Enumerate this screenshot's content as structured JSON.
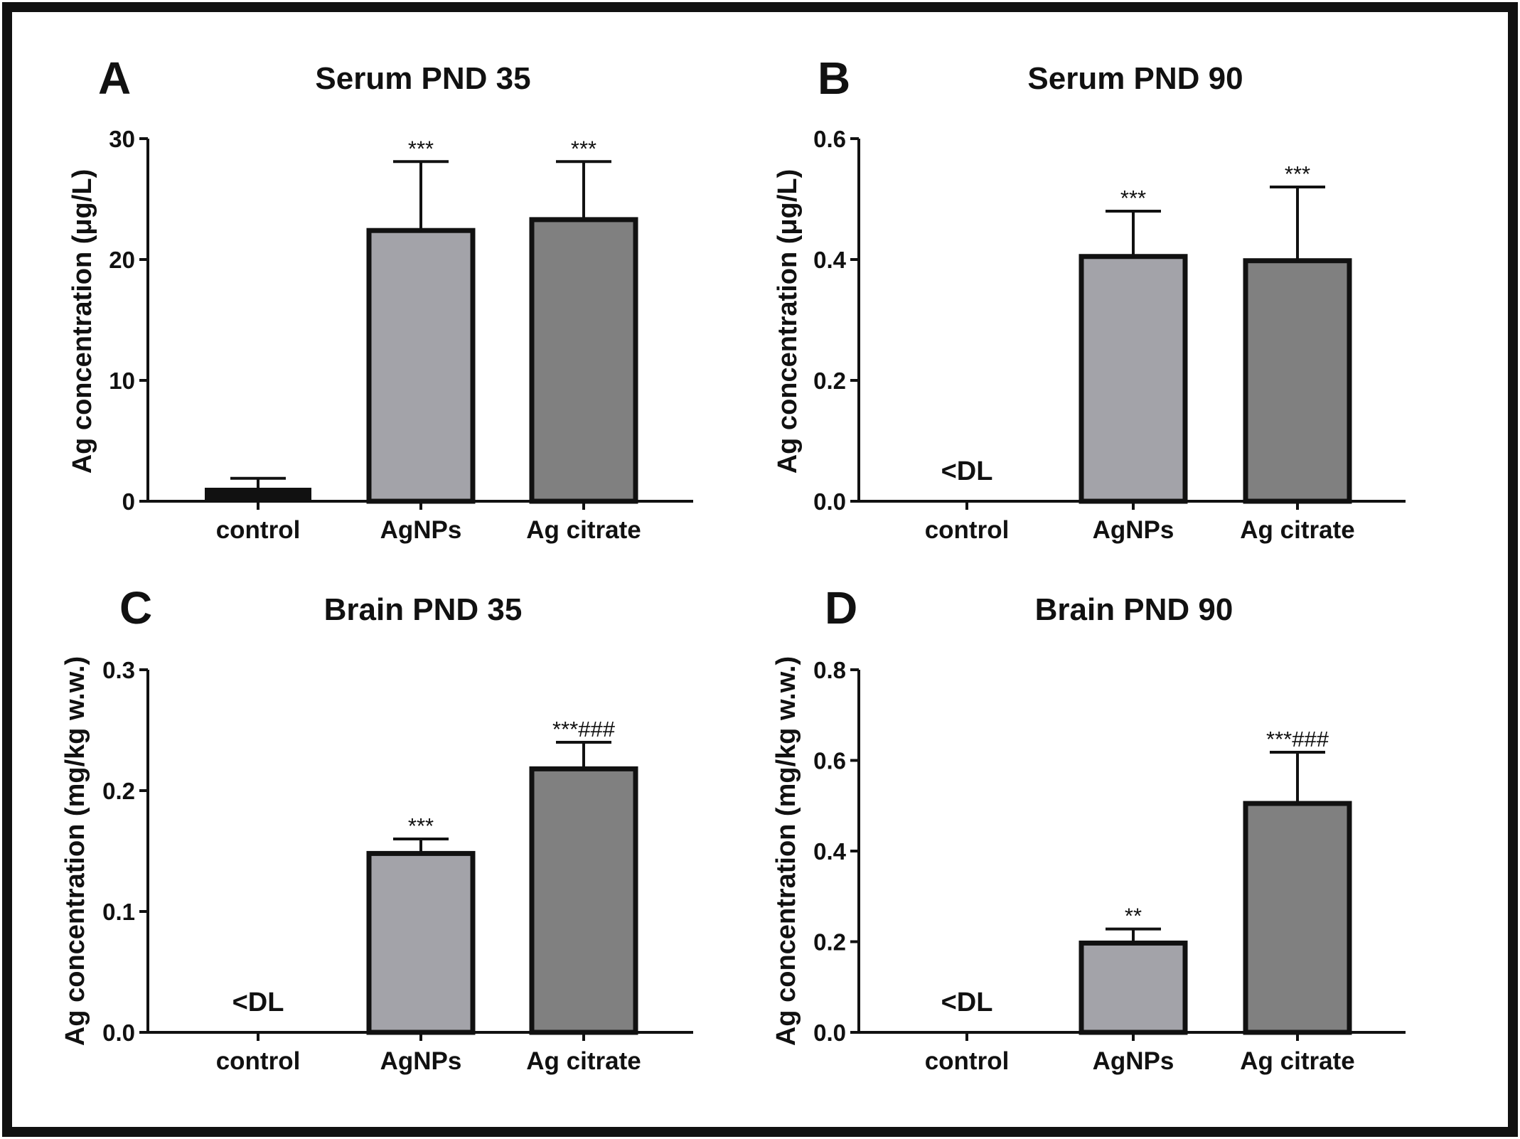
{
  "colors": {
    "control": "#111111",
    "AgNPs": "#a3a3a9",
    "Ag citrate": "#808080",
    "frame": "#111111",
    "axis": "#111111"
  },
  "chart_data": [
    {
      "letter": "A",
      "type": "bar",
      "title": "Serum PND 35",
      "ylabel": "Ag concentration (μg/L)",
      "xlabel": "",
      "ylim": [
        0,
        30
      ],
      "yticks": [
        "0",
        "10",
        "20",
        "30"
      ],
      "categories": [
        "control",
        "AgNPs",
        "Ag citrate"
      ],
      "values": [
        1,
        22.4,
        23.3
      ],
      "errors": [
        0.9,
        5.7,
        4.8
      ],
      "annotations": [
        "",
        "***",
        "***"
      ],
      "below_detection": [
        false,
        false,
        false
      ],
      "dl_text": ""
    },
    {
      "letter": "B",
      "type": "bar",
      "title": "Serum PND 90",
      "ylabel": "Ag concentration (μg/L)",
      "xlabel": "",
      "ylim": [
        0,
        0.6
      ],
      "yticks": [
        "0.0",
        "0.2",
        "0.4",
        "0.6"
      ],
      "categories": [
        "control",
        "AgNPs",
        "Ag citrate"
      ],
      "values": [
        0,
        0.405,
        0.398
      ],
      "errors": [
        0,
        0.075,
        0.122
      ],
      "annotations": [
        "",
        "***",
        "***"
      ],
      "below_detection": [
        true,
        false,
        false
      ],
      "dl_text": "<DL"
    },
    {
      "letter": "C",
      "type": "bar",
      "title": "Brain PND 35",
      "ylabel": "Ag concentration (mg/kg w.w.)",
      "xlabel": "",
      "ylim": [
        0,
        0.3
      ],
      "yticks": [
        "0.0",
        "0.1",
        "0.2",
        "0.3"
      ],
      "categories": [
        "control",
        "AgNPs",
        "Ag citrate"
      ],
      "values": [
        0,
        0.148,
        0.218
      ],
      "errors": [
        0,
        0.012,
        0.022
      ],
      "annotations": [
        "",
        "***",
        "***###"
      ],
      "below_detection": [
        true,
        false,
        false
      ],
      "dl_text": "<DL"
    },
    {
      "letter": "D",
      "type": "bar",
      "title": "Brain PND 90",
      "ylabel": "Ag concentration (mg/kg w.w.)",
      "xlabel": "",
      "ylim": [
        0,
        0.8
      ],
      "yticks": [
        "0.0",
        "0.2",
        "0.4",
        "0.6",
        "0.8"
      ],
      "categories": [
        "control",
        "AgNPs",
        "Ag citrate"
      ],
      "values": [
        0,
        0.197,
        0.505
      ],
      "errors": [
        0,
        0.031,
        0.113
      ],
      "annotations": [
        "",
        "**",
        "***###"
      ],
      "below_detection": [
        true,
        false,
        false
      ],
      "dl_text": "<DL"
    }
  ]
}
